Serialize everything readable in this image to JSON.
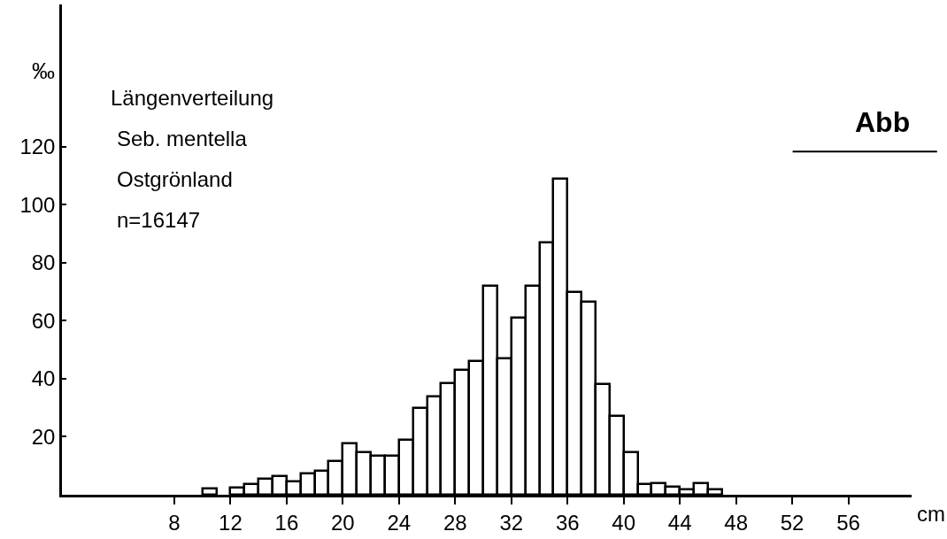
{
  "chart_data": {
    "type": "histogram",
    "ylabel": "‰",
    "xlabel": "cm",
    "annotations": [
      "Längenverteilung",
      "Seb. mentella",
      "Ostgrönland",
      "n=16147",
      "Abb"
    ],
    "bins": [
      10,
      11,
      12,
      13,
      14,
      15,
      16,
      17,
      18,
      19,
      20,
      21,
      22,
      23,
      24,
      25,
      26,
      27,
      28,
      29,
      30,
      31,
      32,
      33,
      34,
      35,
      36,
      37,
      38,
      39,
      40,
      41,
      42,
      43,
      44,
      45,
      46,
      47
    ],
    "values": [
      2,
      null,
      2.5,
      3.7,
      5.4,
      6.3,
      4.7,
      7.3,
      8.3,
      11.6,
      17.7,
      14.5,
      13.3,
      13.3,
      19,
      30,
      34,
      38.5,
      43,
      46,
      72,
      47,
      61,
      72,
      87,
      109,
      70,
      66.5,
      38,
      27,
      14.5,
      3.8,
      4,
      2.8,
      1.8,
      4,
      1.8
    ],
    "color": "#ffffff",
    "xlim": [
      0,
      60.5
    ],
    "xticks": [
      8,
      12,
      16,
      20,
      24,
      28,
      32,
      36,
      40,
      44,
      48,
      52,
      56
    ],
    "ylim": [
      0,
      169
    ],
    "yticks": [
      20,
      40,
      60,
      80,
      100,
      120
    ]
  }
}
